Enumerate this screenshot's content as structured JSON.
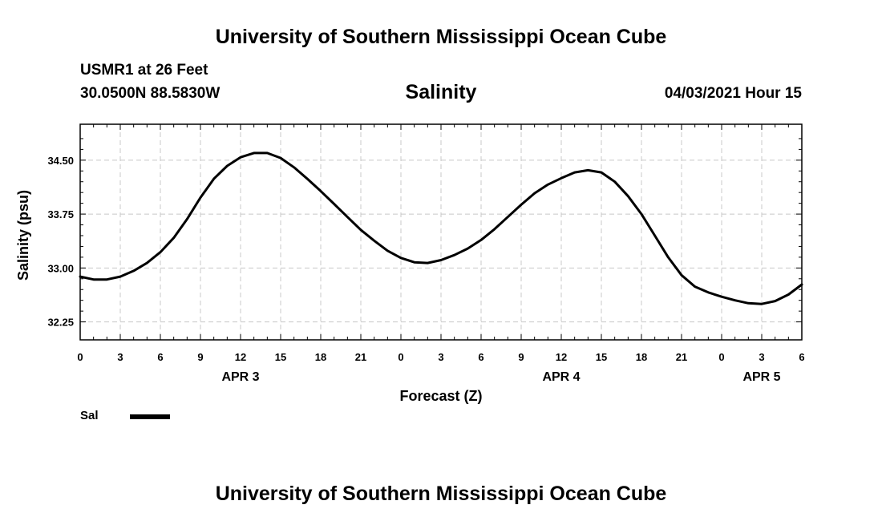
{
  "header": {
    "org_title": "University of Southern Mississippi Ocean Cube",
    "station": "USMR1 at 26 Feet",
    "coords": "30.0500N  88.5830W",
    "parameter": "Salinity",
    "datetime": "04/03/2021 Hour 15"
  },
  "footer": {
    "org_title": "University of Southern Mississippi Ocean Cube"
  },
  "legend": {
    "label": "Sal"
  },
  "chart_data": {
    "type": "line",
    "title": "Salinity",
    "xlabel": "Forecast (Z)",
    "ylabel": "Salinity (psu)",
    "xlim": [
      0,
      54
    ],
    "ylim": [
      32.0,
      35.0
    ],
    "xticks": [
      0,
      3,
      6,
      9,
      12,
      15,
      18,
      21,
      24,
      27,
      30,
      33,
      36,
      39,
      42,
      45,
      48,
      51,
      54
    ],
    "xtick_labels": [
      "0",
      "3",
      "6",
      "9",
      "12",
      "15",
      "18",
      "21",
      "0",
      "3",
      "6",
      "9",
      "12",
      "15",
      "18",
      "21",
      "0",
      "3",
      "6"
    ],
    "yticks": [
      32.25,
      33.0,
      33.75,
      34.5
    ],
    "ytick_labels": [
      "32.25",
      "33.00",
      "33.75",
      "34.50"
    ],
    "date_labels": [
      {
        "x": 12,
        "label": "APR 3"
      },
      {
        "x": 36,
        "label": "APR 4"
      },
      {
        "x": 51,
        "label": "APR 5"
      }
    ],
    "grid": true,
    "series": [
      {
        "name": "Sal",
        "color": "#000000",
        "x": [
          0,
          1,
          2,
          3,
          4,
          5,
          6,
          7,
          8,
          9,
          10,
          11,
          12,
          13,
          14,
          15,
          16,
          17,
          18,
          19,
          20,
          21,
          22,
          23,
          24,
          25,
          26,
          27,
          28,
          29,
          30,
          31,
          32,
          33,
          34,
          35,
          36,
          37,
          38,
          39,
          40,
          41,
          42,
          43,
          44,
          45,
          46,
          47,
          48,
          49,
          50,
          51,
          52,
          53,
          54
        ],
        "values": [
          32.88,
          32.84,
          32.84,
          32.88,
          32.96,
          33.07,
          33.22,
          33.42,
          33.68,
          33.98,
          34.24,
          34.42,
          34.54,
          34.6,
          34.6,
          34.53,
          34.4,
          34.24,
          34.07,
          33.89,
          33.71,
          33.53,
          33.38,
          33.24,
          33.14,
          33.08,
          33.07,
          33.11,
          33.18,
          33.27,
          33.39,
          33.54,
          33.71,
          33.88,
          34.04,
          34.16,
          34.25,
          34.33,
          34.36,
          34.33,
          34.2,
          34.0,
          33.75,
          33.45,
          33.15,
          32.9,
          32.74,
          32.66,
          32.6,
          32.55,
          32.51,
          32.5,
          32.54,
          32.63,
          32.77
        ]
      }
    ]
  }
}
